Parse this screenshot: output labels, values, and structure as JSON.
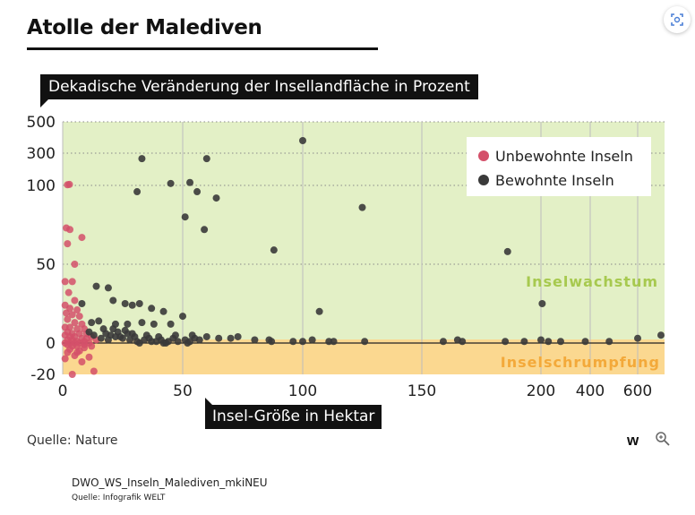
{
  "page": {
    "title": "Atolle der Malediven"
  },
  "source": "Quelle: Nature",
  "footer": {
    "filename": "DWO_WS_Inseln_Malediven_mkiNEU",
    "credit": "Quelle: Infografik WELT"
  },
  "logo_text": "w",
  "icons": {
    "zoom": "zoom-icon",
    "corner": "focus-icon"
  },
  "chart_data": {
    "type": "scatter",
    "title": "Atolle der Malediven",
    "ylabel": "Dekadische Veränderung der Insellandfläche in Prozent",
    "xlabel": "Insel-Größe in Hektar",
    "y_ticks": [
      -20,
      0,
      50,
      100,
      300,
      500
    ],
    "x_ticks": [
      0,
      50,
      100,
      150,
      200,
      400,
      600
    ],
    "x_scale": "broken: linear 0-200, log 200-700",
    "y_scale": "broken: linear -20-100, compressed 100-500",
    "grid": true,
    "legend_position": "top-right",
    "colors": {
      "uninhabited": "#d4506a",
      "inhabited": "#3a3a3a",
      "growth_zone": "#e3f0c6",
      "shrink_zone": "#fbd890",
      "growth_text": "#a7c94f",
      "shrink_text": "#f3a93a"
    },
    "zones": {
      "growth": "Inselwachstum",
      "shrink": "Inselschrumpfung"
    },
    "series": [
      {
        "name": "Unbewohnte Inseln",
        "points": [
          [
            2,
            104
          ],
          [
            2.8,
            106
          ],
          [
            1.5,
            73
          ],
          [
            3,
            72
          ],
          [
            2,
            63
          ],
          [
            8,
            67
          ],
          [
            5,
            50
          ],
          [
            1,
            39
          ],
          [
            4,
            39
          ],
          [
            2.5,
            32
          ],
          [
            5,
            27
          ],
          [
            1,
            24
          ],
          [
            3,
            22
          ],
          [
            6,
            21
          ],
          [
            1.5,
            19
          ],
          [
            4,
            18
          ],
          [
            7,
            17
          ],
          [
            2,
            15
          ],
          [
            5,
            13
          ],
          [
            8,
            12
          ],
          [
            1,
            10
          ],
          [
            3,
            10
          ],
          [
            6,
            9
          ],
          [
            9,
            9
          ],
          [
            2,
            7
          ],
          [
            4,
            6
          ],
          [
            7,
            6
          ],
          [
            1,
            5
          ],
          [
            3,
            4
          ],
          [
            5,
            4
          ],
          [
            8,
            3
          ],
          [
            10,
            3
          ],
          [
            2,
            2
          ],
          [
            4,
            2
          ],
          [
            6,
            1
          ],
          [
            9,
            1
          ],
          [
            1,
            0
          ],
          [
            3,
            0
          ],
          [
            5,
            0
          ],
          [
            7,
            0
          ],
          [
            11,
            0
          ],
          [
            2,
            -1
          ],
          [
            4,
            -2
          ],
          [
            6,
            -2
          ],
          [
            9,
            -3
          ],
          [
            3,
            -4
          ],
          [
            7,
            -5
          ],
          [
            12,
            -2
          ],
          [
            2,
            -6
          ],
          [
            5,
            -8
          ],
          [
            1,
            -10
          ],
          [
            8,
            -12
          ],
          [
            13,
            -18
          ],
          [
            4,
            -20
          ],
          [
            10,
            6
          ],
          [
            12,
            4
          ],
          [
            14,
            2
          ],
          [
            9,
            -1
          ],
          [
            6,
            -6
          ],
          [
            11,
            -9
          ]
        ]
      },
      {
        "name": "Bewohnte Inseln",
        "points": [
          [
            33,
            266
          ],
          [
            60,
            266
          ],
          [
            45,
            112
          ],
          [
            53,
            118
          ],
          [
            31,
            96
          ],
          [
            56,
            96
          ],
          [
            64,
            92
          ],
          [
            51,
            80
          ],
          [
            59,
            72
          ],
          [
            100,
            380
          ],
          [
            125,
            86
          ],
          [
            88,
            59
          ],
          [
            186,
            58
          ],
          [
            8,
            25
          ],
          [
            14,
            36
          ],
          [
            19,
            35
          ],
          [
            21,
            27
          ],
          [
            26,
            25
          ],
          [
            29,
            24
          ],
          [
            32,
            25
          ],
          [
            37,
            22
          ],
          [
            42,
            20
          ],
          [
            50,
            17
          ],
          [
            12,
            13
          ],
          [
            15,
            14
          ],
          [
            22,
            12
          ],
          [
            27,
            12
          ],
          [
            33,
            13
          ],
          [
            38,
            12
          ],
          [
            45,
            12
          ],
          [
            55,
            3
          ],
          [
            60,
            4
          ],
          [
            65,
            3
          ],
          [
            70,
            3
          ],
          [
            73,
            4
          ],
          [
            80,
            2
          ],
          [
            86,
            2
          ],
          [
            87,
            1
          ],
          [
            96,
            1
          ],
          [
            100,
            1
          ],
          [
            104,
            2
          ],
          [
            107,
            20
          ],
          [
            111,
            1
          ],
          [
            113,
            1
          ],
          [
            126,
            1
          ],
          [
            159,
            1
          ],
          [
            165,
            2
          ],
          [
            167,
            1
          ],
          [
            185,
            1
          ],
          [
            193,
            1
          ],
          [
            200,
            2
          ],
          [
            205,
            25
          ],
          [
            230,
            1
          ],
          [
            280,
            1
          ],
          [
            380,
            1
          ],
          [
            480,
            1
          ],
          [
            600,
            3
          ],
          [
            700,
            5
          ],
          [
            16,
            3
          ],
          [
            18,
            6
          ],
          [
            20,
            5
          ],
          [
            23,
            7
          ],
          [
            24,
            4
          ],
          [
            25,
            3
          ],
          [
            26,
            8
          ],
          [
            28,
            2
          ],
          [
            29,
            6
          ],
          [
            30,
            4
          ],
          [
            31,
            1
          ],
          [
            34,
            2
          ],
          [
            35,
            5
          ],
          [
            36,
            3
          ],
          [
            39,
            1
          ],
          [
            40,
            4
          ],
          [
            41,
            2
          ],
          [
            43,
            0
          ],
          [
            44,
            1
          ],
          [
            46,
            3
          ],
          [
            47,
            5
          ],
          [
            48,
            1
          ],
          [
            51,
            2
          ],
          [
            52,
            0
          ],
          [
            53,
            1
          ],
          [
            54,
            5
          ],
          [
            57,
            2
          ],
          [
            11,
            7
          ],
          [
            13,
            5
          ],
          [
            17,
            9
          ],
          [
            19,
            2
          ],
          [
            21,
            9
          ],
          [
            22,
            4
          ],
          [
            27,
            6
          ],
          [
            32,
            0
          ],
          [
            37,
            1
          ],
          [
            42,
            0
          ]
        ]
      }
    ]
  }
}
